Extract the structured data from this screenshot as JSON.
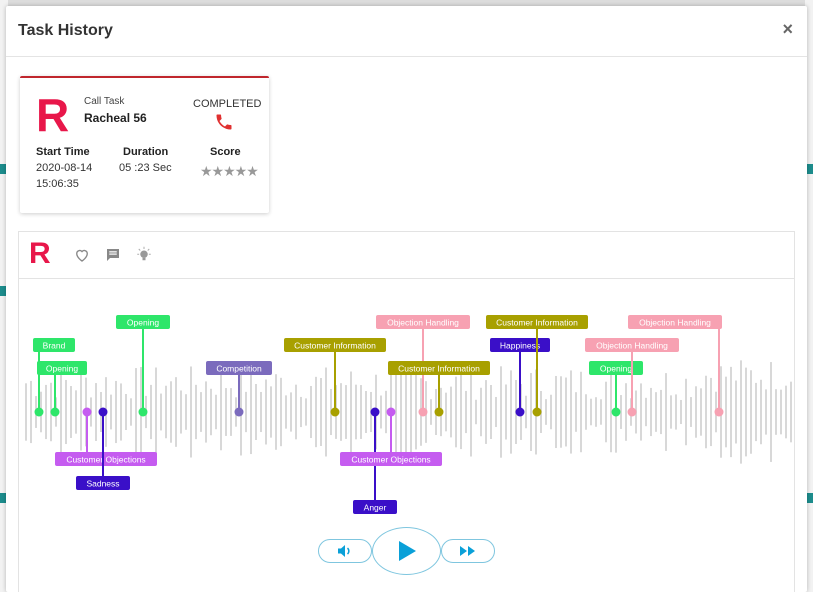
{
  "modal": {
    "title": "Task History",
    "close_symbol": "×"
  },
  "task_card": {
    "logo": "R",
    "type": "Call Task",
    "name": "Racheal 56",
    "status": "COMPLETED",
    "start_time_label": "Start Time",
    "start_date": "2020-08-14",
    "start_clock": "15:06:35",
    "duration_label": "Duration",
    "duration_value": "05 :23 Sec",
    "score_label": "Score",
    "score_stars": "★★★★★",
    "score_rating": 0
  },
  "player": {
    "logo": "R",
    "icons": [
      "heart-icon",
      "comment-icon",
      "bulb-icon"
    ],
    "markers": [
      {
        "label": "Brand",
        "color": "#2ee66a",
        "text": "#ffffff"
      },
      {
        "label": "Opening",
        "color": "#2ee66a",
        "text": "#ffffff"
      },
      {
        "label": "Customer Objections",
        "color": "#c55cf0",
        "text": "#ffffff"
      },
      {
        "label": "Sadness",
        "color": "#3a0fc8",
        "text": "#ffffff"
      },
      {
        "label": "Opening",
        "color": "#2ee66a",
        "text": "#ffffff"
      },
      {
        "label": "Competition",
        "color": "#7b6bbd",
        "text": "#ffffff"
      },
      {
        "label": "Customer Information",
        "color": "#a8a000",
        "text": "#ffffff"
      },
      {
        "label": "Anger",
        "color": "#3a0fc8",
        "text": "#ffffff"
      },
      {
        "label": "Customer Objections",
        "color": "#c55cf0",
        "text": "#ffffff"
      },
      {
        "label": "Objection Handling",
        "color": "#f7a1b2",
        "text": "#ffffff"
      },
      {
        "label": "Customer Information",
        "color": "#a8a000",
        "text": "#ffffff"
      },
      {
        "label": "Happiness",
        "color": "#3a0fc8",
        "text": "#ffffff"
      },
      {
        "label": "Customer Information",
        "color": "#a8a000",
        "text": "#ffffff"
      },
      {
        "label": "Opening",
        "color": "#2ee66a",
        "text": "#ffffff"
      },
      {
        "label": "Objection Handling",
        "color": "#f7a1b2",
        "text": "#ffffff"
      },
      {
        "label": "Objection Handling",
        "color": "#f7a1b2",
        "text": "#ffffff"
      }
    ],
    "controls": [
      "volume-button",
      "play-button",
      "fast-forward-button"
    ]
  },
  "colors": {
    "accent": "#e8174a",
    "phone": "#e03030",
    "control": "#0aa0d8",
    "wave": "#d8d8d8"
  }
}
